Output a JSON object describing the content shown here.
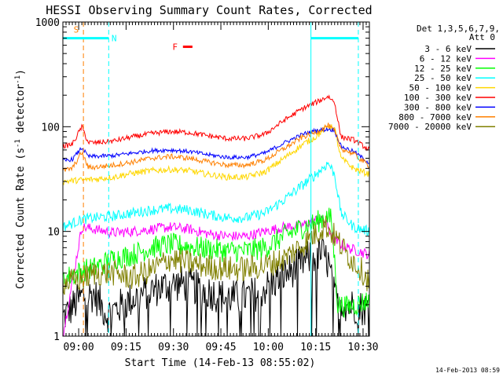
{
  "chart_data": {
    "type": "line",
    "title": "HESSI Observing Summary Count Rates, Corrected",
    "ylabel": "Corrected Count Rate (s⁻¹ detector⁻¹)",
    "ylabel_main": "Corrected Count Rate (s",
    "ylabel_sup1": "-1",
    "ylabel_mid": " detector",
    "ylabel_sup2": "-1",
    "ylabel_end": ")",
    "xlabel": "Start Time (14-Feb-13 08:55:02)",
    "yscale": "log",
    "ylim": [
      1,
      1000
    ],
    "xlim_min": [
      0,
      97
    ],
    "x_unit": "minutes after 08:55:02",
    "y_ticks": [
      {
        "value": 1,
        "label": "1"
      },
      {
        "value": 10,
        "label": "10"
      },
      {
        "value": 100,
        "label": "100"
      },
      {
        "value": 1000,
        "label": "1000"
      }
    ],
    "x_ticks": [
      {
        "min": 5,
        "label": "09:00"
      },
      {
        "min": 20,
        "label": "09:15"
      },
      {
        "min": 35,
        "label": "09:30"
      },
      {
        "min": 50,
        "label": "09:45"
      },
      {
        "min": 65,
        "label": "10:00"
      },
      {
        "min": 80,
        "label": "10:15"
      },
      {
        "min": 95,
        "label": "10:30"
      }
    ],
    "legend_header": [
      "Det 1,3,5,6,7,9,",
      "Att 0"
    ],
    "legend_position": "right",
    "series": [
      {
        "name": "3 - 6 keV",
        "color": "#000000",
        "jitter": 0.35,
        "drop_min": 1.0,
        "points": [
          [
            0,
            1.5
          ],
          [
            6,
            2.4
          ],
          [
            10,
            2.5
          ],
          [
            14,
            1.6
          ],
          [
            20,
            2.1
          ],
          [
            26,
            2.6
          ],
          [
            32,
            3.0
          ],
          [
            38,
            3.2
          ],
          [
            44,
            2.8
          ],
          [
            50,
            2.4
          ],
          [
            56,
            2.3
          ],
          [
            62,
            2.6
          ],
          [
            68,
            3.5
          ],
          [
            74,
            4.6
          ],
          [
            78,
            5.6
          ],
          [
            82,
            6.2
          ],
          [
            84,
            5.0
          ],
          [
            86,
            2.3
          ],
          [
            90,
            2.0
          ],
          [
            97,
            1.8
          ]
        ]
      },
      {
        "name": "6 - 12 keV",
        "color": "#ff00ff",
        "jitter": 0.1,
        "points": [
          [
            0,
            1.0
          ],
          [
            6,
            11
          ],
          [
            10,
            10.5
          ],
          [
            16,
            9.7
          ],
          [
            22,
            10
          ],
          [
            28,
            10.5
          ],
          [
            34,
            11
          ],
          [
            40,
            10.5
          ],
          [
            46,
            9.5
          ],
          [
            52,
            9.0
          ],
          [
            58,
            9.0
          ],
          [
            64,
            10
          ],
          [
            70,
            11
          ],
          [
            76,
            11.5
          ],
          [
            80,
            13
          ],
          [
            83,
            12.5
          ],
          [
            86,
            8.2
          ],
          [
            90,
            7.0
          ],
          [
            97,
            6.0
          ]
        ]
      },
      {
        "name": "12 - 25 keV",
        "color": "#00ff00",
        "jitter": 0.22,
        "points": [
          [
            0,
            3.5
          ],
          [
            6,
            4.2
          ],
          [
            10,
            4.5
          ],
          [
            16,
            5.5
          ],
          [
            22,
            6.0
          ],
          [
            28,
            7.0
          ],
          [
            34,
            7.5
          ],
          [
            40,
            7.2
          ],
          [
            46,
            6.8
          ],
          [
            52,
            6.5
          ],
          [
            58,
            6.5
          ],
          [
            64,
            7.0
          ],
          [
            70,
            9.0
          ],
          [
            76,
            11
          ],
          [
            80,
            12
          ],
          [
            83,
            14
          ],
          [
            85,
            13
          ],
          [
            87,
            2.0
          ],
          [
            90,
            1.9
          ],
          [
            97,
            2.2
          ]
        ]
      },
      {
        "name": "25 - 50 keV",
        "color": "#00ffff",
        "jitter": 0.1,
        "points": [
          [
            0,
            11
          ],
          [
            6,
            13
          ],
          [
            10,
            13.5
          ],
          [
            16,
            14
          ],
          [
            22,
            15
          ],
          [
            28,
            16
          ],
          [
            34,
            16.5
          ],
          [
            40,
            16
          ],
          [
            46,
            14.5
          ],
          [
            52,
            13.5
          ],
          [
            58,
            13.5
          ],
          [
            64,
            15
          ],
          [
            70,
            20
          ],
          [
            76,
            28
          ],
          [
            80,
            35
          ],
          [
            84,
            45
          ],
          [
            86,
            35
          ],
          [
            88,
            15
          ],
          [
            92,
            11
          ],
          [
            97,
            10
          ]
        ]
      },
      {
        "name": "50 - 100 keV",
        "color": "#ffd700",
        "jitter": 0.06,
        "points": [
          [
            0,
            30
          ],
          [
            6,
            31
          ],
          [
            10,
            31.5
          ],
          [
            16,
            33
          ],
          [
            22,
            36
          ],
          [
            28,
            38
          ],
          [
            34,
            39
          ],
          [
            40,
            38
          ],
          [
            46,
            35
          ],
          [
            52,
            33
          ],
          [
            58,
            33
          ],
          [
            64,
            37
          ],
          [
            70,
            50
          ],
          [
            76,
            68
          ],
          [
            80,
            80
          ],
          [
            84,
            102
          ],
          [
            86,
            95
          ],
          [
            88,
            50
          ],
          [
            92,
            40
          ],
          [
            97,
            35
          ]
        ]
      },
      {
        "name": "100 - 300 keV",
        "color": "#ff0000",
        "jitter": 0.05,
        "points": [
          [
            0,
            65
          ],
          [
            3,
            68
          ],
          [
            6,
            100
          ],
          [
            8,
            71
          ],
          [
            10,
            70
          ],
          [
            16,
            73
          ],
          [
            22,
            80
          ],
          [
            28,
            86
          ],
          [
            34,
            90
          ],
          [
            40,
            88
          ],
          [
            46,
            82
          ],
          [
            52,
            77
          ],
          [
            58,
            77
          ],
          [
            64,
            85
          ],
          [
            70,
            115
          ],
          [
            76,
            150
          ],
          [
            80,
            170
          ],
          [
            84,
            195
          ],
          [
            86,
            170
          ],
          [
            88,
            80
          ],
          [
            92,
            75
          ],
          [
            97,
            60
          ]
        ]
      },
      {
        "name": "300 - 800 keV",
        "color": "#0000ff",
        "jitter": 0.04,
        "points": [
          [
            0,
            47
          ],
          [
            3,
            49
          ],
          [
            6,
            63
          ],
          [
            8,
            52
          ],
          [
            10,
            52
          ],
          [
            16,
            53
          ],
          [
            22,
            56
          ],
          [
            28,
            59
          ],
          [
            34,
            60
          ],
          [
            40,
            58
          ],
          [
            46,
            54
          ],
          [
            52,
            51
          ],
          [
            58,
            51
          ],
          [
            64,
            56
          ],
          [
            70,
            70
          ],
          [
            76,
            85
          ],
          [
            80,
            92
          ],
          [
            84,
            95
          ],
          [
            86,
            92
          ],
          [
            88,
            65
          ],
          [
            92,
            58
          ],
          [
            97,
            45
          ]
        ]
      },
      {
        "name": "800 - 7000 keV",
        "color": "#ff8000",
        "jitter": 0.05,
        "points": [
          [
            0,
            38
          ],
          [
            3,
            40
          ],
          [
            6,
            57
          ],
          [
            8,
            41
          ],
          [
            10,
            41
          ],
          [
            16,
            43
          ],
          [
            22,
            46
          ],
          [
            28,
            50
          ],
          [
            34,
            52
          ],
          [
            40,
            50
          ],
          [
            46,
            46
          ],
          [
            52,
            43
          ],
          [
            58,
            43
          ],
          [
            64,
            48
          ],
          [
            70,
            62
          ],
          [
            76,
            80
          ],
          [
            80,
            88
          ],
          [
            84,
            103
          ],
          [
            86,
            90
          ],
          [
            88,
            62
          ],
          [
            92,
            55
          ],
          [
            97,
            42
          ]
        ]
      },
      {
        "name": "7000 - 20000 keV",
        "color": "#808000",
        "jitter": 0.25,
        "points": [
          [
            0,
            3.2
          ],
          [
            6,
            3.5
          ],
          [
            10,
            4.0
          ],
          [
            16,
            4.0
          ],
          [
            22,
            3.6
          ],
          [
            28,
            4.3
          ],
          [
            34,
            5.5
          ],
          [
            40,
            5.0
          ],
          [
            46,
            4.6
          ],
          [
            52,
            4.4
          ],
          [
            58,
            4.4
          ],
          [
            64,
            4.7
          ],
          [
            70,
            5.5
          ],
          [
            76,
            7.5
          ],
          [
            80,
            9.5
          ],
          [
            83,
            11.5
          ],
          [
            86,
            9.0
          ],
          [
            90,
            6.0
          ],
          [
            94,
            4.5
          ],
          [
            97,
            3.3
          ]
        ]
      }
    ],
    "flag_lines": [
      {
        "min": 0,
        "color": "#00ffff",
        "style": "solid"
      },
      {
        "min": 6.5,
        "color": "#ff8000",
        "style": "dashed"
      },
      {
        "min": 14.5,
        "color": "#00ffff",
        "style": "dashed"
      },
      {
        "min": 78.5,
        "color": "#00ffff",
        "style": "solid"
      },
      {
        "min": 93.5,
        "color": "#00ffff",
        "style": "dashed"
      }
    ],
    "flag_segments": [
      {
        "from": 0,
        "to": 14.5,
        "y": 700,
        "color": "#00ffff"
      },
      {
        "from": 78.5,
        "to": 93.5,
        "y": 700,
        "color": "#00ffff"
      },
      {
        "from": 38,
        "to": 41,
        "y": 580,
        "color": "#ff0000"
      }
    ],
    "flag_labels": [
      {
        "text": "S",
        "min": 4.2,
        "y": 850,
        "color": "#ff8000"
      },
      {
        "text": "N",
        "min": 16.2,
        "y": 700,
        "color": "#00ffff"
      },
      {
        "text": "F",
        "min": 35.5,
        "y": 580,
        "color": "#ff0000"
      }
    ],
    "timestamp": "14-Feb-2013 08:59"
  }
}
